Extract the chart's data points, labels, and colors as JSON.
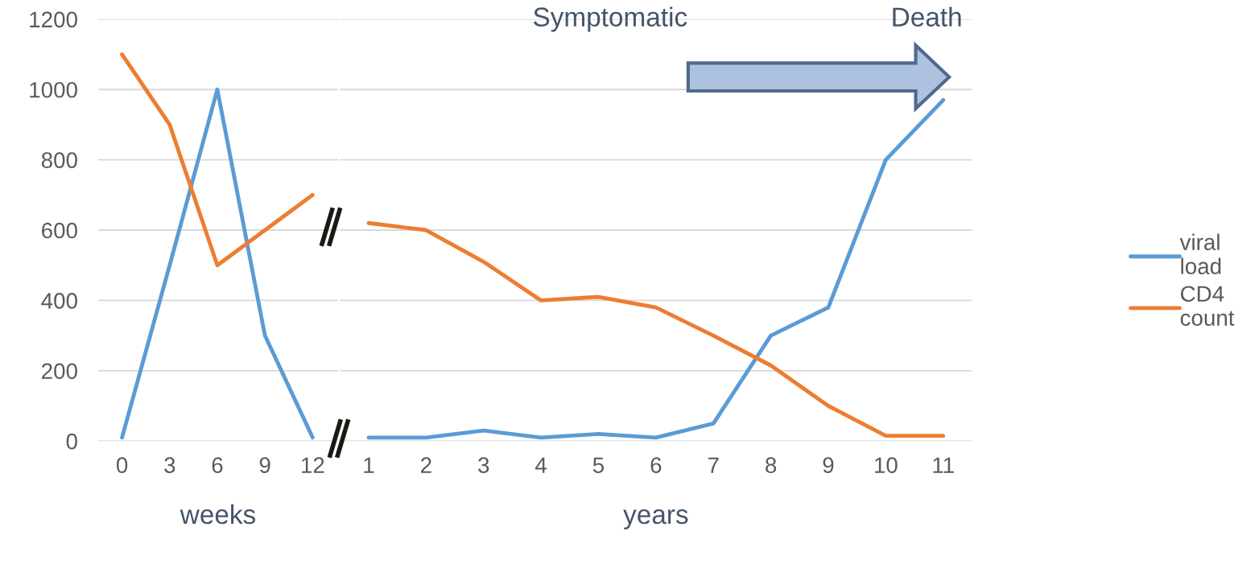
{
  "chart_data": [
    {
      "type": "line",
      "xlabel": "weeks",
      "xlim": [
        -1.5,
        13.6
      ],
      "xticks": [
        0,
        3,
        6,
        9,
        12
      ],
      "ylim": [
        0,
        1200
      ],
      "yticks": [
        0,
        200,
        400,
        600,
        800,
        1000,
        1200
      ],
      "grid": "y",
      "x": [
        0,
        3,
        6,
        9,
        12
      ],
      "series": [
        {
          "color": "#5b9bd5",
          "values": [
            10,
            500,
            1000,
            300,
            10
          ]
        },
        {
          "color": "#ed7d31",
          "values": [
            1100,
            900,
            500,
            600,
            700
          ]
        }
      ]
    },
    {
      "type": "line",
      "xlabel": "years",
      "xlim": [
        0.5,
        11.5
      ],
      "xticks": [
        1,
        2,
        3,
        4,
        5,
        6,
        7,
        8,
        9,
        10,
        11
      ],
      "ylim": [
        0,
        1200
      ],
      "yticks": [
        0,
        200,
        400,
        600,
        800,
        1000,
        1200
      ],
      "grid": "y",
      "tick_labels": "x",
      "legend": "right",
      "x": [
        1,
        2,
        3,
        4,
        5,
        6,
        7,
        8,
        9,
        10,
        11
      ],
      "annotations": [
        "Symptomatic",
        "Death"
      ],
      "series": [
        {
          "name": "viral load",
          "color": "#5b9bd5",
          "values": [
            10,
            10,
            30,
            10,
            20,
            10,
            50,
            300,
            380,
            800,
            970
          ]
        },
        {
          "name": "CD4 count",
          "color": "#ed7d31",
          "values": [
            620,
            600,
            510,
            400,
            410,
            380,
            300,
            215,
            100,
            15,
            15
          ]
        }
      ]
    }
  ]
}
